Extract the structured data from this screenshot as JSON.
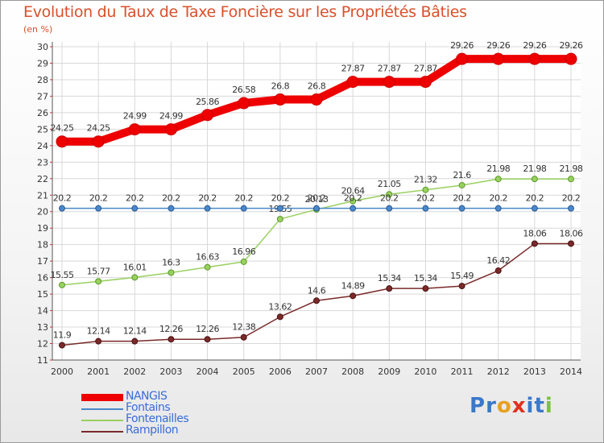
{
  "title": "Evolution du Taux de Taxe Foncière sur les Propriétés Bâties",
  "unit_label": "(en %)",
  "logo": {
    "letters": [
      {
        "ch": "P",
        "color": "#3a78c8"
      },
      {
        "ch": "r",
        "color": "#3a78c8"
      },
      {
        "ch": "o",
        "color": "#e8a020"
      },
      {
        "ch": "x",
        "color": "#e03020"
      },
      {
        "ch": "i",
        "color": "#3a78c8"
      },
      {
        "ch": "t",
        "color": "#3a78c8"
      },
      {
        "ch": "i",
        "color": "#7cc040"
      }
    ]
  },
  "chart_data": {
    "type": "line",
    "x": [
      2000,
      2001,
      2002,
      2003,
      2004,
      2005,
      2006,
      2007,
      2008,
      2009,
      2010,
      2011,
      2012,
      2013,
      2014
    ],
    "ylim": [
      11,
      30
    ],
    "yticks": [
      11,
      12,
      13,
      14,
      15,
      16,
      17,
      18,
      19,
      20,
      21,
      22,
      23,
      24,
      25,
      26,
      27,
      28,
      29,
      30
    ],
    "grid": true,
    "legend": "bottom-left",
    "series": [
      {
        "name": "NANGIS",
        "color": "#ee0000",
        "width": 10,
        "values": [
          24.25,
          24.25,
          24.99,
          24.99,
          25.86,
          26.58,
          26.8,
          26.8,
          27.87,
          27.87,
          27.87,
          29.26,
          29.26,
          29.26,
          29.26
        ],
        "labels": [
          "24.25",
          "24.25",
          "24.99",
          "24.99",
          "25.86",
          "26.58",
          "26.8",
          "26.8",
          "27.87",
          "27.87",
          "27.87",
          "29.26",
          "29.26",
          "29.26",
          "29.26"
        ]
      },
      {
        "name": "Fontains",
        "color": "#4a88c8",
        "width": 1.5,
        "values": [
          20.2,
          20.2,
          20.2,
          20.2,
          20.2,
          20.2,
          20.2,
          20.2,
          20.2,
          20.2,
          20.2,
          20.2,
          20.2,
          20.2,
          20.2
        ],
        "labels": [
          "20.2",
          "20.2",
          "20.2",
          "20.2",
          "20.2",
          "20.2",
          "20.2",
          "20.2",
          "20.2",
          "20.2",
          "20.2",
          "20.2",
          "20.2",
          "20.2",
          "20.2"
        ]
      },
      {
        "name": "Fontenailles",
        "color": "#99d060",
        "width": 1.5,
        "values": [
          15.55,
          15.77,
          16.01,
          16.3,
          16.63,
          16.96,
          19.55,
          20.13,
          20.64,
          21.05,
          21.32,
          21.6,
          21.98,
          21.98,
          21.98
        ],
        "labels": [
          "15.55",
          "15.77",
          "16.01",
          "16.3",
          "16.63",
          "16.96",
          "19.55",
          "20.13",
          "20.64",
          "21.05",
          "21.32",
          "21.6",
          "21.98",
          "21.98",
          "21.98"
        ]
      },
      {
        "name": "Rampillon",
        "color": "#7a2a2a",
        "width": 1.5,
        "values": [
          11.9,
          12.14,
          12.14,
          12.26,
          12.26,
          12.38,
          13.62,
          14.6,
          14.89,
          15.34,
          15.34,
          15.49,
          16.42,
          18.06,
          18.06
        ],
        "labels": [
          "11.9",
          "12.14",
          "12.14",
          "12.26",
          "12.26",
          "12.38",
          "13.62",
          "14.6",
          "14.89",
          "15.34",
          "15.34",
          "15.49",
          "16.42",
          "18.06",
          "18.06"
        ]
      }
    ]
  }
}
